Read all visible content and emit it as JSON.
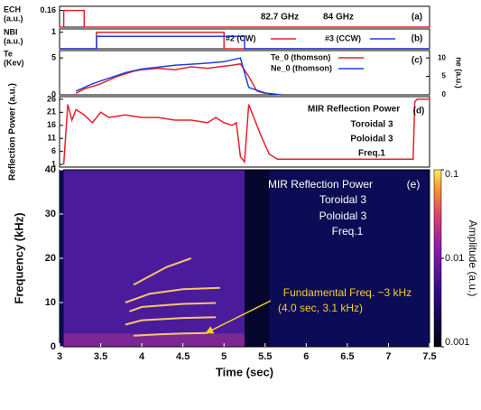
{
  "chart_data": [
    {
      "type": "line",
      "ylabel": [
        "ECH",
        "(a.u.)"
      ],
      "xlim": [
        3,
        7.5
      ],
      "ylim": [
        0,
        0.2
      ],
      "yticks": [
        0.16
      ],
      "annotations": [
        "82.7 GHz",
        "84 GHz",
        "(a)"
      ],
      "series": [
        {
          "color": "#e8202a",
          "x": [
            3,
            3.05,
            3.05,
            3.3,
            3.3,
            7.5
          ],
          "values": [
            0,
            0,
            0.16,
            0.16,
            0,
            0
          ]
        }
      ]
    },
    {
      "type": "line",
      "ylabel": [
        "NBI",
        "(a.u.)"
      ],
      "xlim": [
        3,
        7.5
      ],
      "ylim": [
        0,
        1.2
      ],
      "yticks": [
        1
      ],
      "annotations": [
        "(b)"
      ],
      "series": [
        {
          "name": "#2 (CW)",
          "color": "#e8202a",
          "x": [
            3,
            3.45,
            3.45,
            5.0,
            5.0,
            7.5
          ],
          "values": [
            0,
            0,
            1,
            1,
            0,
            0
          ]
        },
        {
          "name": "#3 (CCW)",
          "color": "#2040e0",
          "x": [
            3,
            3.45,
            3.45,
            5.25,
            5.25,
            7.5
          ],
          "values": [
            0,
            0,
            0.75,
            0.75,
            0,
            0
          ]
        }
      ]
    },
    {
      "type": "line",
      "ylabel": [
        "Te",
        "(Kev)"
      ],
      "y2label": "ne (a.u.)",
      "xlim": [
        3,
        7.5
      ],
      "ylim": [
        0,
        6
      ],
      "yticks": [
        0,
        5
      ],
      "y2lim": [
        0,
        12
      ],
      "y2ticks": [
        0,
        5,
        10
      ],
      "annotations": [
        "(c)"
      ],
      "series": [
        {
          "name": "Te_0 (thomson)",
          "color": "#e8202a",
          "x": [
            3.2,
            3.3,
            3.5,
            3.7,
            3.9,
            4.0,
            4.2,
            4.4,
            4.6,
            4.8,
            5.0,
            5.1,
            5.2,
            5.3,
            5.4,
            5.5
          ],
          "values": [
            0.2,
            0.8,
            1.5,
            2.5,
            3.2,
            3.4,
            3.6,
            3.4,
            3.8,
            3.6,
            3.9,
            4.0,
            4.2,
            2.5,
            0.5,
            0.2
          ]
        },
        {
          "name": "Ne_0 (thomson)",
          "color": "#2040e0",
          "axis": "y2",
          "x": [
            3.2,
            3.4,
            3.6,
            3.8,
            4.0,
            4.2,
            4.4,
            4.6,
            4.8,
            5.0,
            5.1,
            5.2,
            5.25,
            5.3,
            5.5,
            5.7
          ],
          "values": [
            1,
            3,
            4.5,
            6,
            7,
            7.5,
            8,
            8.3,
            8.6,
            9,
            9.5,
            10,
            6,
            2,
            0.5,
            0
          ]
        }
      ]
    },
    {
      "type": "line",
      "ylabel": "Reflection Power (a.u.)",
      "xlim": [
        3,
        7.5
      ],
      "ylim": [
        0,
        27
      ],
      "yticks": [
        1,
        6,
        11,
        16,
        21,
        26
      ],
      "annotations": [
        "MIR Reflection Power",
        "Toroidal 3",
        "Poloidal 3",
        "Freq.1",
        "(d)"
      ],
      "series": [
        {
          "color": "#e8202a",
          "x": [
            3.05,
            3.1,
            3.15,
            3.2,
            3.3,
            3.4,
            3.5,
            3.6,
            3.8,
            4.0,
            4.2,
            4.4,
            4.6,
            4.8,
            4.9,
            5.0,
            5.1,
            5.15,
            5.2,
            5.25,
            5.3,
            5.35,
            5.45,
            5.55,
            5.65,
            5.8,
            6.5,
            7.0,
            7.3,
            7.32,
            7.35,
            7.5
          ],
          "values": [
            1,
            24,
            18,
            22,
            20,
            17,
            21,
            19,
            20,
            19,
            19,
            18,
            18,
            17,
            19,
            17,
            16,
            17,
            4,
            2,
            24,
            20,
            12,
            5,
            3,
            3,
            3,
            3,
            3,
            25,
            26,
            26
          ]
        }
      ]
    },
    {
      "type": "spectrogram",
      "ylabel": "Frequency (kHz)",
      "xlabel": "Time (sec)",
      "xlim": [
        3,
        7.5
      ],
      "xticks": [
        3,
        3.5,
        4,
        4.5,
        5,
        5.5,
        6,
        6.5,
        7,
        7.5
      ],
      "ylim": [
        0,
        40
      ],
      "yticks": [
        0,
        10,
        20,
        30,
        40
      ],
      "colorbar": {
        "label": "Amplitude (a.u.)",
        "log": true,
        "lim": [
          0.001,
          0.1
        ],
        "ticks": [
          0.1,
          0.01,
          0.001
        ]
      },
      "annotations": [
        "MIR Reflection Power",
        "Toroidal 3",
        "Poloidal 3",
        "Freq.1",
        "(e)",
        "Fundamental Freq. ~3 kHz",
        "(4.0 sec, 3.1 kHz)"
      ],
      "series": [
        {
          "color": "#f7c56a",
          "x": [
            3.9,
            4.2,
            4.5,
            4.8
          ],
          "values": [
            2.5,
            2.8,
            3,
            3.1
          ]
        },
        {
          "color": "#f7c56a",
          "x": [
            3.8,
            4.0,
            4.5,
            4.9
          ],
          "values": [
            5,
            6,
            6.5,
            6.7
          ]
        },
        {
          "color": "#f7c56a",
          "x": [
            3.85,
            4.0,
            4.5,
            4.9
          ],
          "values": [
            8,
            9,
            9.7,
            9.9
          ]
        },
        {
          "color": "#f7c56a",
          "x": [
            3.8,
            4.1,
            4.5,
            4.95
          ],
          "values": [
            10,
            12,
            13,
            13.3
          ]
        },
        {
          "color": "#f7c56a",
          "x": [
            3.9,
            4.3,
            4.6
          ],
          "values": [
            14,
            18,
            20
          ]
        }
      ]
    }
  ]
}
